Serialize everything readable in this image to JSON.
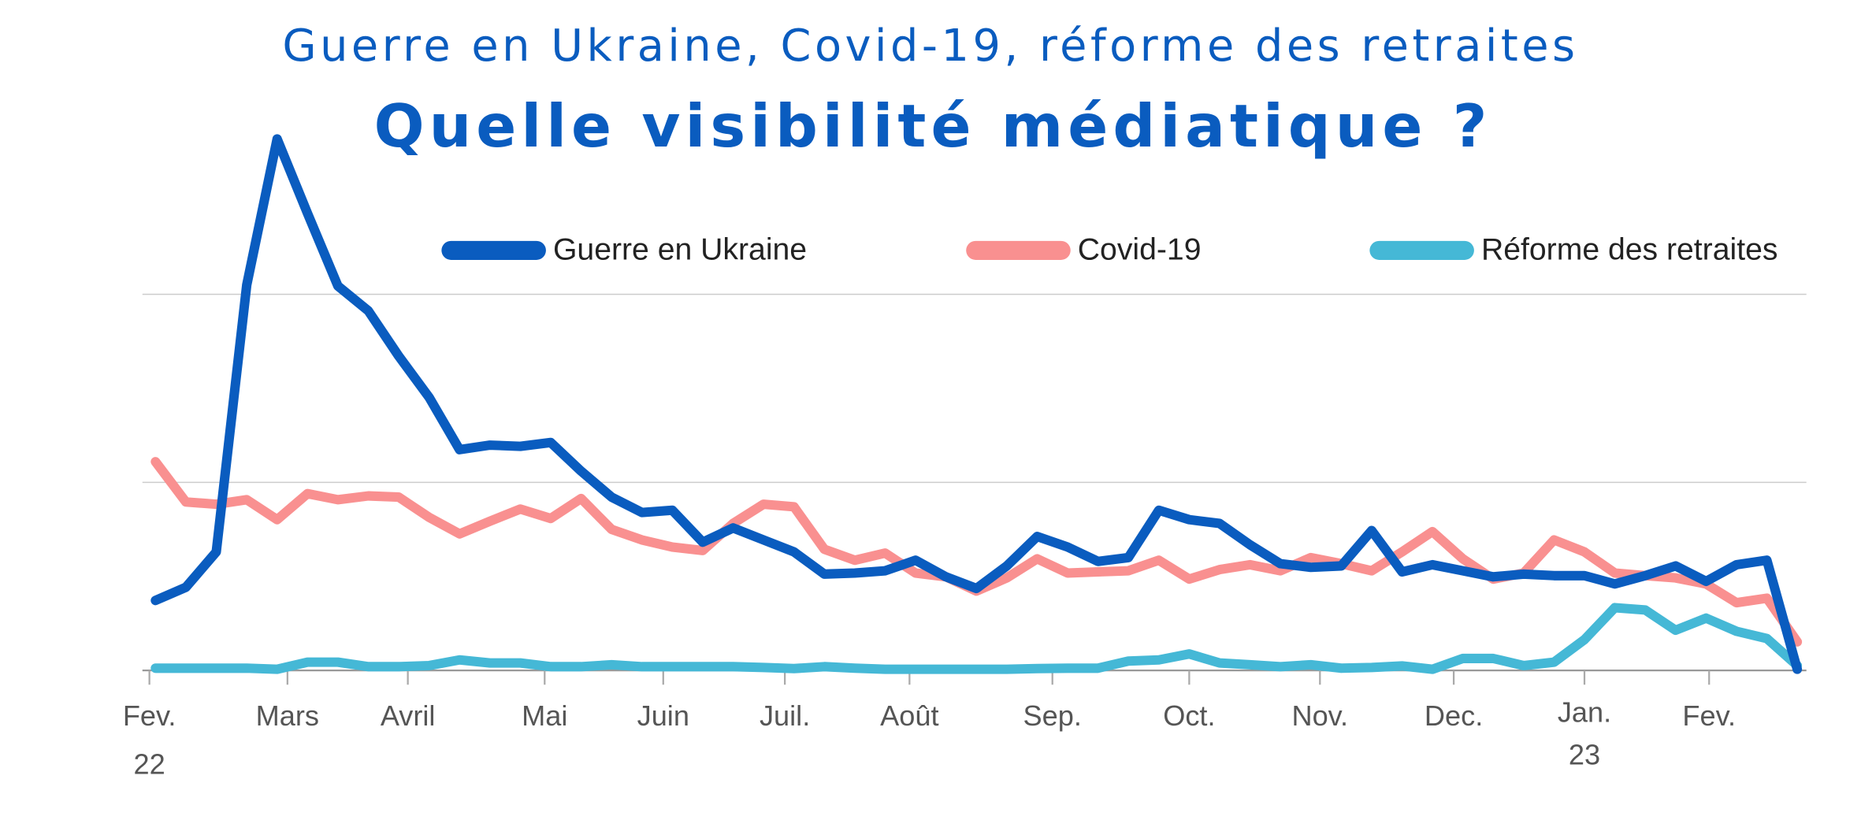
{
  "chart_data": {
    "type": "line",
    "title": "Guerre en Ukraine, Covid-19, réforme des retraites",
    "subtitle": "Quelle visibilité médiatique ?",
    "x": [
      0,
      1,
      2,
      3,
      4,
      5,
      6,
      7,
      8,
      9,
      10,
      11,
      12,
      13,
      14,
      15,
      16,
      17,
      18,
      19,
      20,
      21,
      22,
      23,
      24,
      25,
      26,
      27,
      28,
      29,
      30,
      31,
      32,
      33,
      34,
      35,
      36,
      37,
      38,
      39,
      40,
      41,
      42,
      43,
      44,
      45,
      46,
      47,
      48,
      49,
      50,
      51,
      52,
      53,
      54
    ],
    "xlim": [
      -0.43,
      54.3
    ],
    "xticks": [
      {
        "value": -0.2,
        "label": "Fev."
      },
      {
        "value": 4.34,
        "label": "Mars"
      },
      {
        "value": 8.3,
        "label": "Avril"
      },
      {
        "value": 12.8,
        "label": "Mai"
      },
      {
        "value": 16.7,
        "label": "Juin"
      },
      {
        "value": 20.7,
        "label": "Juil."
      },
      {
        "value": 24.8,
        "label": "Août"
      },
      {
        "value": 29.5,
        "label": "Sep."
      },
      {
        "value": 34.0,
        "label": "Oct."
      },
      {
        "value": 38.3,
        "label": "Nov."
      },
      {
        "value": 42.7,
        "label": "Dec."
      },
      {
        "value": 47.0,
        "label": "Jan."
      },
      {
        "value": 51.1,
        "label": "Fev."
      }
    ],
    "year_labels": [
      {
        "value": -0.2,
        "label": "22"
      },
      {
        "value": 47.0,
        "label": "23"
      }
    ],
    "ylim": [
      0,
      150
    ],
    "yticks": [
      0,
      50,
      100
    ],
    "grid": true,
    "legend": "top",
    "series": [
      {
        "name": "Guerre en Ukraine",
        "color": "#0a5cbf",
        "values": [
          18.6,
          22.1,
          31.5,
          102.5,
          141.3,
          121.5,
          102.2,
          95.6,
          83.6,
          72.6,
          58.7,
          59.9,
          59.6,
          60.6,
          53,
          46.1,
          42,
          42.6,
          34.1,
          37.9,
          34.7,
          31.5,
          25.6,
          25.9,
          26.5,
          29.3,
          24.9,
          21.8,
          27.8,
          35.6,
          32.8,
          29,
          30,
          42.6,
          40.1,
          39.1,
          33.4,
          28.4,
          27.4,
          27.8,
          37.2,
          26.2,
          28.1,
          26.5,
          24.9,
          25.6,
          25.2,
          25.2,
          23,
          25.2,
          27.8,
          23.7,
          28.1,
          29.3,
          0.3
        ]
      },
      {
        "name": "Covid-19",
        "color": "#f99090",
        "values": [
          55.5,
          44.8,
          44.2,
          45.4,
          40.1,
          47,
          45.4,
          46.4,
          46.1,
          40.7,
          36.3,
          39.7,
          42.9,
          40.4,
          45.7,
          37.5,
          34.7,
          32.8,
          31.9,
          39.1,
          44.2,
          43.5,
          32.2,
          29.3,
          31.2,
          25.9,
          24.9,
          21.1,
          24.6,
          29.7,
          25.9,
          26.2,
          26.5,
          29.3,
          24.3,
          26.8,
          28.1,
          26.5,
          30,
          28.4,
          26.5,
          31.5,
          36.9,
          29.7,
          24.3,
          25.9,
          34.7,
          31.5,
          25.9,
          25.2,
          24.6,
          23,
          18,
          19.2,
          7.6
        ]
      },
      {
        "name": "Réforme des retraites",
        "color": "#45b8d6",
        "values": [
          0.6,
          0.6,
          0.6,
          0.6,
          0.3,
          2.2,
          2.2,
          1,
          1,
          1.3,
          2.8,
          2,
          2,
          1,
          1,
          1.5,
          1,
          1,
          1,
          1,
          0.8,
          0.5,
          1,
          0.6,
          0.3,
          0.3,
          0.3,
          0.3,
          0.3,
          0.5,
          0.6,
          0.6,
          2.5,
          2.8,
          4.4,
          2,
          1.5,
          1,
          1.5,
          0.6,
          0.8,
          1.2,
          0.3,
          3.2,
          3.2,
          1.3,
          2.2,
          8.2,
          16.7,
          16.1,
          10.7,
          13.9,
          10.4,
          8.5,
          1.3
        ]
      }
    ]
  }
}
